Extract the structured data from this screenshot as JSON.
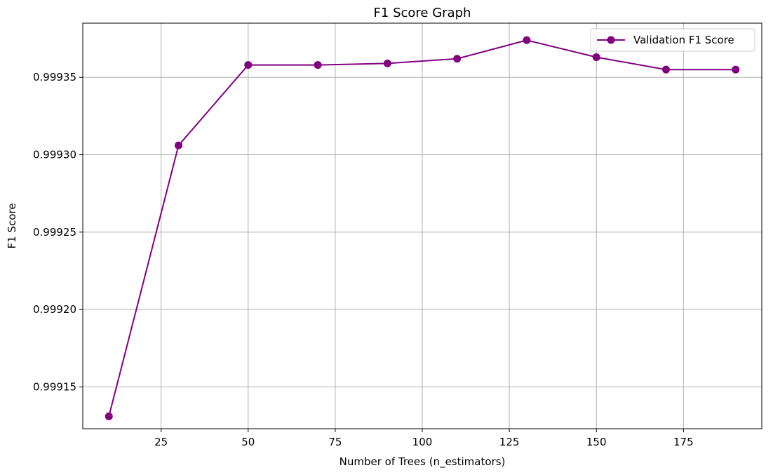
{
  "chart_data": {
    "type": "line",
    "title": "F1 Score Graph",
    "xlabel": "Number of Trees (n_estimators)",
    "ylabel": "F1 Score",
    "xlim": [
      2.5,
      197.5
    ],
    "ylim": [
      0.999123,
      0.999385
    ],
    "xticks": [
      25,
      50,
      75,
      100,
      125,
      150,
      175
    ],
    "xtick_labels": [
      "25",
      "50",
      "75",
      "100",
      "125",
      "150",
      "175"
    ],
    "yticks": [
      0.99915,
      0.9992,
      0.99925,
      0.9993,
      0.99935
    ],
    "ytick_labels": [
      "0.99915",
      "0.99920",
      "0.99925",
      "0.99930",
      "0.99935"
    ],
    "grid": true,
    "legend_position": "top-right",
    "series": [
      {
        "name": "Validation F1 Score",
        "color": "#800080",
        "marker": "circle",
        "x": [
          10,
          30,
          50,
          70,
          90,
          110,
          130,
          150,
          170,
          190
        ],
        "y": [
          0.999131,
          0.999306,
          0.999358,
          0.999358,
          0.999359,
          0.999362,
          0.999374,
          0.999363,
          0.999355,
          0.999355
        ]
      }
    ]
  }
}
